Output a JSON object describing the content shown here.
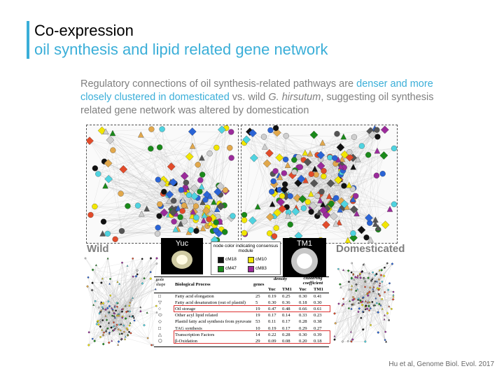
{
  "header": {
    "title": "Co-expression",
    "subtitle": "oil synthesis and lipid related gene network"
  },
  "description": {
    "part1": "Regulatory connections of oil synthesis-related pathways are ",
    "highlight": "denser and more closely clustered in domesticated",
    "part2": " vs. wild ",
    "species": "G. hirsutum",
    "part3": ", suggesting oil synthesis related gene network was altered by domestication"
  },
  "labels": {
    "wild": "Wild",
    "domesticated": "Domesticated",
    "thumb_left": "Yuc",
    "thumb_right": "TM1"
  },
  "legend": {
    "title": "node color indicating consensus module",
    "items": [
      {
        "label": "cM18",
        "color": "#111111"
      },
      {
        "label": "cM10",
        "color": "#f2e600"
      },
      {
        "label": "cM47",
        "color": "#1a8a1a"
      },
      {
        "label": "cM83",
        "color": "#9b2a9b"
      }
    ]
  },
  "table": {
    "head": {
      "node_shape": "node shape",
      "process": "Biological Process",
      "genes": "genes",
      "density": "density",
      "clustering": "clustering coefficient",
      "yuc": "Yuc",
      "tm1": "TM1"
    },
    "rows": [
      {
        "shape": "□",
        "process": "Fatty acid elongation",
        "genes": "25",
        "d_yuc": "0.19",
        "d_tm1": "0.25",
        "c_yuc": "0.30",
        "c_tm1": "0.41"
      },
      {
        "shape": "▽",
        "process": "Fatty acid desaturation (out of plastid)",
        "genes": "5",
        "d_yuc": "0.30",
        "d_tm1": "0.36",
        "c_yuc": "0.18",
        "c_tm1": "0.30"
      },
      {
        "shape": "○",
        "process": "Oil storage",
        "genes": "19",
        "d_yuc": "0.47",
        "d_tm1": "0.48",
        "c_yuc": "0.66",
        "c_tm1": "0.61"
      },
      {
        "shape": "⬭",
        "process": "Other acyl lipid related",
        "genes": "19",
        "d_yuc": "0.17",
        "d_tm1": "0.14",
        "c_yuc": "0.33",
        "c_tm1": "0.23"
      },
      {
        "shape": "◇",
        "process": "Plastid fatty acid synthesis from pyruvate",
        "genes": "53",
        "d_yuc": "0.11",
        "d_tm1": "0.17",
        "c_yuc": "0.28",
        "c_tm1": "0.38"
      },
      {
        "shape": "□",
        "process": "TAG synthesis",
        "genes": "10",
        "d_yuc": "0.19",
        "d_tm1": "0.17",
        "c_yuc": "0.29",
        "c_tm1": "0.27"
      },
      {
        "shape": "△",
        "process": "Transcription Factors",
        "genes": "14",
        "d_yuc": "0.22",
        "d_tm1": "0.28",
        "c_yuc": "0.30",
        "c_tm1": "0.39"
      },
      {
        "shape": "⬡",
        "process": "β-Oxidation",
        "genes": "29",
        "d_yuc": "0.09",
        "d_tm1": "0.08",
        "c_yuc": "0.20",
        "c_tm1": "0.18"
      }
    ]
  },
  "citation": "Hu et al, Genome Biol. Evol. 2017"
}
